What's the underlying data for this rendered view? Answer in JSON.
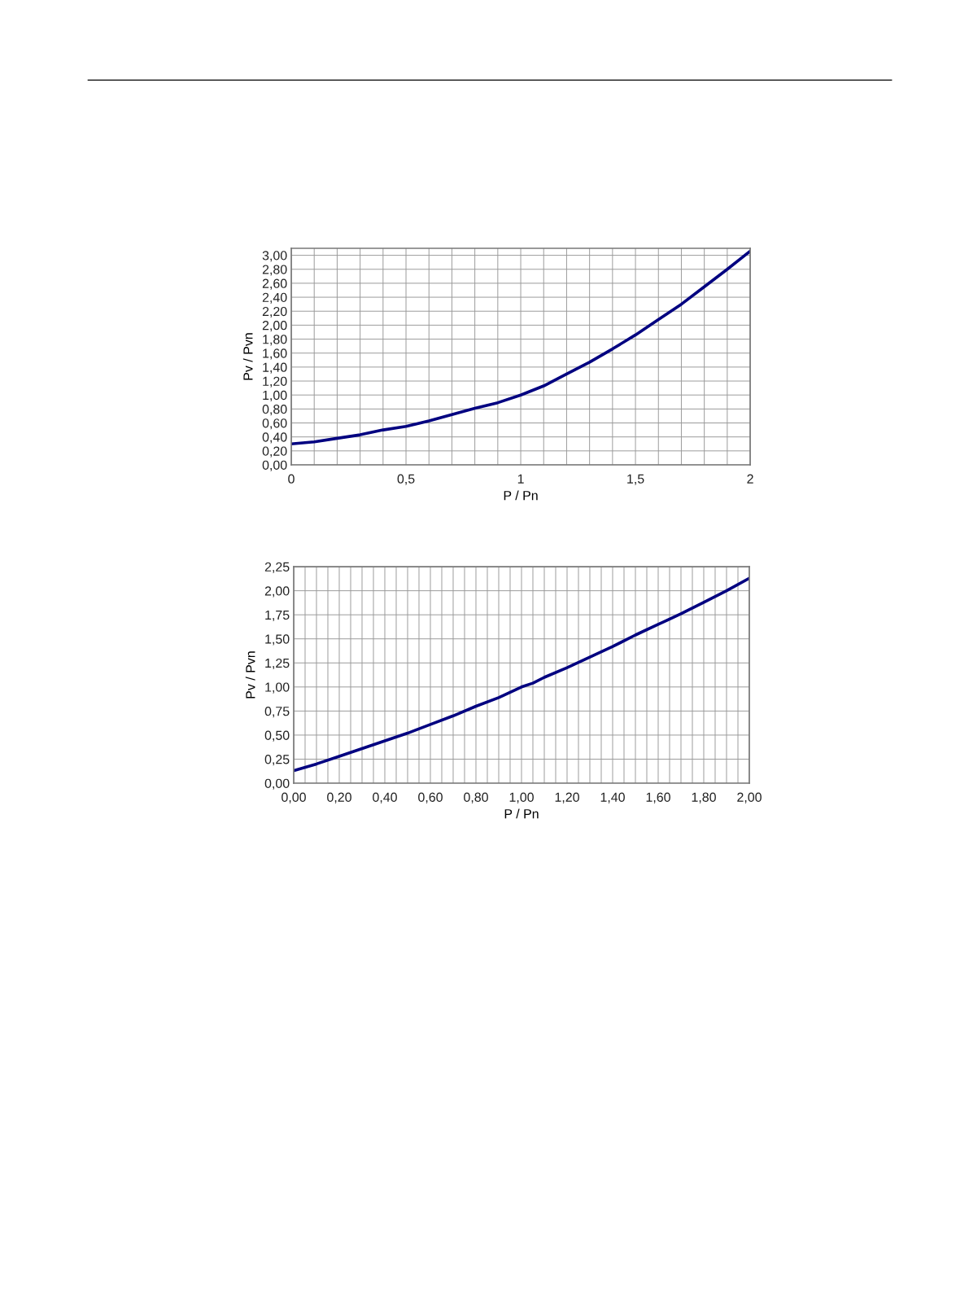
{
  "chart_data": [
    {
      "type": "line",
      "xlabel": "P / Pn",
      "ylabel": "Pv / Pvn",
      "grid": true,
      "marker": "none",
      "line_style": "solid",
      "xlim": [
        0,
        2
      ],
      "ylim": [
        0,
        3.1
      ],
      "xticks": [
        0,
        {
          "value": 0.1,
          "label": null
        },
        {
          "value": 0.2,
          "label": null
        },
        {
          "value": 0.3,
          "label": null
        },
        {
          "value": 0.4,
          "label": null
        },
        {
          "value": 0.5,
          "label": "0,5"
        },
        {
          "value": 0.6,
          "label": null
        },
        {
          "value": 0.7,
          "label": null
        },
        {
          "value": 0.8,
          "label": null
        },
        {
          "value": 0.9,
          "label": null
        },
        1,
        {
          "value": 1.1,
          "label": null
        },
        {
          "value": 1.2,
          "label": null
        },
        {
          "value": 1.3,
          "label": null
        },
        {
          "value": 1.4,
          "label": null
        },
        {
          "value": 1.5,
          "label": "1,5"
        },
        {
          "value": 1.6,
          "label": null
        },
        {
          "value": 1.7,
          "label": null
        },
        {
          "value": 1.8,
          "label": null
        },
        {
          "value": 1.9,
          "label": null
        },
        2
      ],
      "yticks": [
        {
          "value": 0,
          "label": "0,00"
        },
        {
          "value": 0.2,
          "label": "0,20"
        },
        {
          "value": 0.4,
          "label": "0,40"
        },
        {
          "value": 0.6,
          "label": "0,60"
        },
        {
          "value": 0.8,
          "label": "0,80"
        },
        {
          "value": 1.0,
          "label": "1,00"
        },
        {
          "value": 1.2,
          "label": "1,20"
        },
        {
          "value": 1.4,
          "label": "1,40"
        },
        {
          "value": 1.6,
          "label": "1,60"
        },
        {
          "value": 1.8,
          "label": "1,80"
        },
        {
          "value": 2.0,
          "label": "2,00"
        },
        {
          "value": 2.2,
          "label": "2,20"
        },
        {
          "value": 2.4,
          "label": "2,40"
        },
        {
          "value": 2.6,
          "label": "2,60"
        },
        {
          "value": 2.8,
          "label": "2,80"
        },
        {
          "value": 3.0,
          "label": "3,00"
        }
      ],
      "x": [
        0,
        0.1,
        0.2,
        0.3,
        0.4,
        0.5,
        0.6,
        0.7,
        0.8,
        0.9,
        1.0,
        1.1,
        1.2,
        1.3,
        1.4,
        1.5,
        1.6,
        1.7,
        1.8,
        1.9,
        2.0
      ],
      "series": [
        {
          "color": "#000080",
          "values": [
            0.3,
            0.33,
            0.38,
            0.43,
            0.5,
            0.55,
            0.63,
            0.72,
            0.81,
            0.89,
            1.0,
            1.13,
            1.3,
            1.47,
            1.66,
            1.86,
            2.08,
            2.3,
            2.55,
            2.8,
            3.06
          ]
        }
      ]
    },
    {
      "type": "line",
      "xlabel": "P / Pn",
      "ylabel": "Pv / Pvn",
      "grid": true,
      "marker": "none",
      "line_style": "solid",
      "xlim": [
        0,
        2
      ],
      "ylim": [
        0,
        2.25
      ],
      "xticks": [
        {
          "value": 0,
          "label": "0,00"
        },
        {
          "value": 0.05,
          "label": null
        },
        {
          "value": 0.1,
          "label": null
        },
        {
          "value": 0.15,
          "label": null
        },
        {
          "value": 0.2,
          "label": "0,20"
        },
        {
          "value": 0.25,
          "label": null
        },
        {
          "value": 0.3,
          "label": null
        },
        {
          "value": 0.35,
          "label": null
        },
        {
          "value": 0.4,
          "label": "0,40"
        },
        {
          "value": 0.45,
          "label": null
        },
        {
          "value": 0.5,
          "label": null
        },
        {
          "value": 0.55,
          "label": null
        },
        {
          "value": 0.6,
          "label": "0,60"
        },
        {
          "value": 0.65,
          "label": null
        },
        {
          "value": 0.7,
          "label": null
        },
        {
          "value": 0.75,
          "label": null
        },
        {
          "value": 0.8,
          "label": "0,80"
        },
        {
          "value": 0.85,
          "label": null
        },
        {
          "value": 0.9,
          "label": null
        },
        {
          "value": 0.95,
          "label": null
        },
        {
          "value": 1.0,
          "label": "1,00"
        },
        {
          "value": 1.05,
          "label": null
        },
        {
          "value": 1.1,
          "label": null
        },
        {
          "value": 1.15,
          "label": null
        },
        {
          "value": 1.2,
          "label": "1,20"
        },
        {
          "value": 1.25,
          "label": null
        },
        {
          "value": 1.3,
          "label": null
        },
        {
          "value": 1.35,
          "label": null
        },
        {
          "value": 1.4,
          "label": "1,40"
        },
        {
          "value": 1.45,
          "label": null
        },
        {
          "value": 1.5,
          "label": null
        },
        {
          "value": 1.55,
          "label": null
        },
        {
          "value": 1.6,
          "label": "1,60"
        },
        {
          "value": 1.65,
          "label": null
        },
        {
          "value": 1.7,
          "label": null
        },
        {
          "value": 1.75,
          "label": null
        },
        {
          "value": 1.8,
          "label": "1,80"
        },
        {
          "value": 1.85,
          "label": null
        },
        {
          "value": 1.9,
          "label": null
        },
        {
          "value": 1.95,
          "label": null
        },
        {
          "value": 2.0,
          "label": "2,00"
        }
      ],
      "yticks": [
        {
          "value": 0,
          "label": "0,00"
        },
        {
          "value": 0.25,
          "label": "0,25"
        },
        {
          "value": 0.5,
          "label": "0,50"
        },
        {
          "value": 0.75,
          "label": "0,75"
        },
        {
          "value": 1.0,
          "label": "1,00"
        },
        {
          "value": 1.25,
          "label": "1,25"
        },
        {
          "value": 1.5,
          "label": "1,50"
        },
        {
          "value": 1.75,
          "label": "1,75"
        },
        {
          "value": 2.0,
          "label": "2,00"
        },
        {
          "value": 2.25,
          "label": "2,25"
        }
      ],
      "x": [
        0,
        0.1,
        0.2,
        0.3,
        0.4,
        0.5,
        0.6,
        0.7,
        0.8,
        0.9,
        1.0,
        1.05,
        1.1,
        1.2,
        1.3,
        1.4,
        1.5,
        1.6,
        1.7,
        1.8,
        1.9,
        2.0
      ],
      "series": [
        {
          "color": "#000080",
          "values": [
            0.13,
            0.2,
            0.28,
            0.36,
            0.44,
            0.52,
            0.61,
            0.7,
            0.8,
            0.89,
            1.0,
            1.04,
            1.1,
            1.2,
            1.31,
            1.42,
            1.54,
            1.65,
            1.76,
            1.88,
            2.0,
            2.13
          ]
        }
      ]
    }
  ]
}
